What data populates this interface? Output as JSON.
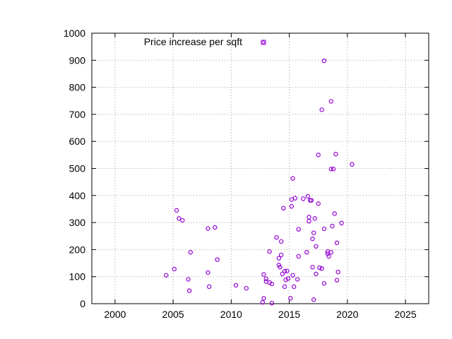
{
  "chart_data": {
    "type": "scatter",
    "title": "",
    "xlabel": "",
    "ylabel": "",
    "xlim": [
      1998,
      2027
    ],
    "ylim": [
      0,
      1000
    ],
    "x_ticks": [
      2000,
      2005,
      2010,
      2015,
      2020,
      2025
    ],
    "y_ticks": [
      0,
      100,
      200,
      300,
      400,
      500,
      600,
      700,
      800,
      900,
      1000
    ],
    "grid": true,
    "legend_position": "top-left",
    "series": [
      {
        "name": "Price increase per sqft",
        "color": "#9400d3",
        "marker": "open-circle",
        "points": [
          [
            2004.4,
            105
          ],
          [
            2005.1,
            128
          ],
          [
            2005.3,
            345
          ],
          [
            2005.5,
            315
          ],
          [
            2005.8,
            308
          ],
          [
            2006.3,
            90
          ],
          [
            2006.4,
            48
          ],
          [
            2006.5,
            190
          ],
          [
            2008.0,
            278
          ],
          [
            2008.0,
            115
          ],
          [
            2008.1,
            63
          ],
          [
            2008.6,
            282
          ],
          [
            2008.8,
            163
          ],
          [
            2010.4,
            68
          ],
          [
            2011.3,
            57
          ],
          [
            2012.7,
            5
          ],
          [
            2012.8,
            20
          ],
          [
            2012.8,
            108
          ],
          [
            2013.0,
            92
          ],
          [
            2013.0,
            82
          ],
          [
            2013.3,
            193
          ],
          [
            2013.3,
            78
          ],
          [
            2013.5,
            73
          ],
          [
            2013.5,
            2
          ],
          [
            2013.9,
            245
          ],
          [
            2014.1,
            168
          ],
          [
            2014.1,
            143
          ],
          [
            2014.2,
            135
          ],
          [
            2014.3,
            180
          ],
          [
            2014.3,
            230
          ],
          [
            2014.4,
            110
          ],
          [
            2014.5,
            353
          ],
          [
            2014.6,
            63
          ],
          [
            2014.6,
            120
          ],
          [
            2014.7,
            88
          ],
          [
            2014.8,
            121
          ],
          [
            2014.9,
            93
          ],
          [
            2015.1,
            20
          ],
          [
            2015.2,
            385
          ],
          [
            2015.2,
            360
          ],
          [
            2015.3,
            105
          ],
          [
            2015.3,
            463
          ],
          [
            2015.4,
            63
          ],
          [
            2015.5,
            390
          ],
          [
            2015.7,
            90
          ],
          [
            2015.8,
            275
          ],
          [
            2015.8,
            175
          ],
          [
            2016.2,
            388
          ],
          [
            2016.5,
            190
          ],
          [
            2016.6,
            397
          ],
          [
            2016.7,
            320
          ],
          [
            2016.7,
            305
          ],
          [
            2016.8,
            382
          ],
          [
            2016.9,
            382
          ],
          [
            2017.0,
            240
          ],
          [
            2017.0,
            135
          ],
          [
            2017.1,
            15
          ],
          [
            2017.1,
            262
          ],
          [
            2017.2,
            315
          ],
          [
            2017.3,
            110
          ],
          [
            2017.3,
            212
          ],
          [
            2017.5,
            370
          ],
          [
            2017.5,
            550
          ],
          [
            2017.6,
            133
          ],
          [
            2017.8,
            130
          ],
          [
            2017.8,
            717
          ],
          [
            2018.0,
            898
          ],
          [
            2018.0,
            75
          ],
          [
            2018.0,
            277
          ],
          [
            2018.3,
            193
          ],
          [
            2018.3,
            185
          ],
          [
            2018.4,
            175
          ],
          [
            2018.6,
            748
          ],
          [
            2018.6,
            190
          ],
          [
            2018.6,
            498
          ],
          [
            2018.7,
            287
          ],
          [
            2018.8,
            498
          ],
          [
            2018.9,
            333
          ],
          [
            2019.0,
            553
          ],
          [
            2019.1,
            225
          ],
          [
            2019.1,
            87
          ],
          [
            2019.2,
            117
          ],
          [
            2019.5,
            298
          ],
          [
            2020.4,
            515
          ]
        ]
      }
    ]
  }
}
